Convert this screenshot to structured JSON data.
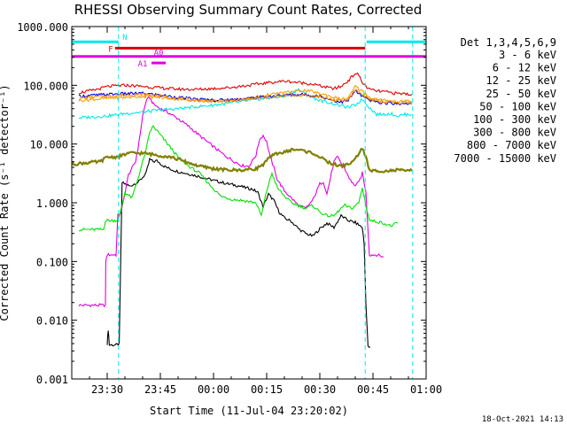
{
  "chart_data": {
    "type": "line",
    "title": "RHESSI Observing Summary Count Rates, Corrected",
    "ylabel": "Corrected Count Rate (s⁻¹ detector⁻¹)",
    "xlabel": "Start Time (11-Jul-04 23:20:02)",
    "date_stamp": "18-Oct-2021 14:13",
    "yscale": "log",
    "ylim": [
      0.001,
      1000
    ],
    "xlim_minutes": [
      0,
      100
    ],
    "y_ticks": [
      {
        "value": 1000,
        "label": "1000.000"
      },
      {
        "value": 100,
        "label": "100.000"
      },
      {
        "value": 10,
        "label": "10.000"
      },
      {
        "value": 1,
        "label": "1.000"
      },
      {
        "value": 0.1,
        "label": "0.100"
      },
      {
        "value": 0.01,
        "label": "0.010"
      },
      {
        "value": 0.001,
        "label": "0.001"
      }
    ],
    "x_ticks": [
      {
        "minute": 10,
        "label": "23:30"
      },
      {
        "minute": 25,
        "label": "23:45"
      },
      {
        "minute": 40,
        "label": "00:00"
      },
      {
        "minute": 55,
        "label": "00:15"
      },
      {
        "minute": 70,
        "label": "00:30"
      },
      {
        "minute": 85,
        "label": "00:45"
      },
      {
        "minute": 100,
        "label": "01:00"
      }
    ],
    "legend": {
      "placement": "right",
      "header": "Det 1,3,4,5,6,9",
      "entries": [
        {
          "label": "3 - 6 keV",
          "color": "#000000"
        },
        {
          "label": "6 - 12 keV",
          "color": "#e000e0"
        },
        {
          "label": "12 - 25 keV",
          "color": "#00e000"
        },
        {
          "label": "25 - 50 keV",
          "color": "#00e8e8"
        },
        {
          "label": "50 - 100 keV",
          "color": "#f0a000"
        },
        {
          "label": "100 - 300 keV",
          "color": "#e00000"
        },
        {
          "label": "300 - 800 keV",
          "color": "#0000e0"
        },
        {
          "label": "800 - 7000 keV",
          "color": "#ff8c00"
        },
        {
          "label": "7000 - 15000 keV",
          "color": "#808000"
        }
      ]
    },
    "flags": [
      {
        "label": "N",
        "color": "#00e8e8",
        "y": 550,
        "segments": [
          [
            0,
            13.2
          ],
          [
            83.2,
            100
          ]
        ]
      },
      {
        "label": "F",
        "color": "#e00000",
        "y": 430,
        "segments": [
          [
            12.2,
            82.8
          ]
        ]
      },
      {
        "label": "A0",
        "color": "#e000e0",
        "y": 310,
        "segments": [
          [
            0,
            100
          ]
        ]
      },
      {
        "label": "A1",
        "color": "#e000e0",
        "y": 240,
        "segments": [
          [
            22.5,
            26.5
          ]
        ]
      }
    ],
    "vlines": [
      {
        "minute": 13.2,
        "color": "#00e8e8"
      },
      {
        "minute": 82.8,
        "color": "#00e8e8"
      },
      {
        "minute": 96.2,
        "color": "#00e8e8"
      }
    ],
    "series": [
      {
        "name": "3 - 6 keV",
        "color": "#000000",
        "x": [
          10,
          10.3,
          10.6,
          12.9,
          13.4,
          14.2,
          16.5,
          17,
          19,
          21,
          22,
          23,
          24,
          26,
          28,
          30,
          33,
          36,
          40,
          44,
          47,
          49,
          51,
          52.5,
          54,
          55.5,
          57,
          58.5,
          60,
          62,
          64,
          66,
          68,
          70,
          72,
          74,
          76,
          78,
          80,
          82,
          82.5,
          83,
          83.6,
          84.2
        ],
        "y": [
          0.004,
          0.007,
          0.0038,
          0.0038,
          0.004,
          2.2,
          1.9,
          2.0,
          2.3,
          3.2,
          5.5,
          5.0,
          5.2,
          4.2,
          3.7,
          3.4,
          3.1,
          2.8,
          2.4,
          2.1,
          1.95,
          1.8,
          1.7,
          1.5,
          0.85,
          1.4,
          1.1,
          0.7,
          0.55,
          0.48,
          0.36,
          0.3,
          0.27,
          0.36,
          0.45,
          0.38,
          0.6,
          0.5,
          0.46,
          0.38,
          0.2,
          0.02,
          0.0035,
          0.0035
        ]
      },
      {
        "name": "6 - 12 keV",
        "color": "#e000e0",
        "x": [
          2,
          9.5,
          9.6,
          10,
          12.5,
          13,
          14,
          16,
          18,
          19,
          20,
          21,
          22,
          23,
          25,
          27,
          30,
          33,
          36,
          40,
          43,
          46,
          48,
          50,
          52,
          53,
          54,
          55,
          56,
          57,
          58,
          60,
          62,
          64,
          66,
          68,
          70,
          71,
          72,
          74,
          75,
          77,
          79,
          80,
          81,
          82,
          83,
          84,
          86,
          88
        ],
        "y": [
          0.018,
          0.018,
          0.1,
          0.13,
          0.13,
          0.6,
          0.7,
          3.0,
          5.0,
          11.0,
          30.0,
          55.0,
          62.0,
          48.0,
          40.0,
          35.0,
          27.0,
          20.0,
          14.0,
          9.0,
          6.5,
          5.0,
          4.3,
          4.2,
          6.5,
          12.0,
          14.0,
          11.0,
          6.0,
          4.0,
          2.5,
          1.6,
          1.2,
          0.9,
          0.8,
          1.1,
          2.1,
          2.3,
          1.4,
          5.0,
          6.0,
          3.8,
          2.2,
          2.0,
          2.2,
          3.2,
          1.5,
          0.13,
          0.13,
          0.12
        ]
      },
      {
        "name": "12 - 25 keV",
        "color": "#00e000",
        "x": [
          2,
          9,
          9.5,
          13,
          13.5,
          15,
          17,
          19,
          21,
          22,
          23,
          24,
          26,
          28,
          30,
          33,
          36,
          39,
          42,
          45,
          48,
          50,
          52,
          53.5,
          55,
          56.5,
          58,
          60,
          62,
          64,
          66,
          68,
          70,
          72,
          74,
          76,
          77,
          79,
          81,
          82,
          83,
          84,
          86,
          88,
          90,
          92
        ],
        "y": [
          0.35,
          0.35,
          0.5,
          0.5,
          0.6,
          1.5,
          1.2,
          3.0,
          8.0,
          16.0,
          20.0,
          17.0,
          12.0,
          8.5,
          6.0,
          4.2,
          3.2,
          2.0,
          1.3,
          1.15,
          1.1,
          1.05,
          1.0,
          0.6,
          1.6,
          3.2,
          1.8,
          1.3,
          1.0,
          0.9,
          0.8,
          0.9,
          0.7,
          0.6,
          0.6,
          0.8,
          0.9,
          0.8,
          1.0,
          1.8,
          0.9,
          0.5,
          0.48,
          0.45,
          0.4,
          0.45
        ]
      },
      {
        "name": "25 - 50 keV",
        "color": "#00e8e8",
        "x": [
          2,
          10,
          15,
          20,
          25,
          30,
          35,
          40,
          45,
          50,
          55,
          60,
          62,
          64,
          66,
          68,
          70,
          72,
          74,
          76,
          78,
          80,
          82,
          84,
          86,
          88,
          90,
          92,
          94,
          96
        ],
        "y": [
          28.0,
          30.0,
          33.0,
          35.0,
          38.0,
          40.0,
          43.0,
          46.0,
          50.0,
          55.0,
          60.0,
          65.0,
          72.0,
          85.0,
          70.0,
          62.0,
          55.0,
          52.0,
          48.0,
          45.0,
          42.0,
          46.0,
          58.0,
          42.0,
          32.0,
          32.0,
          33.0,
          30.0,
          32.0,
          32.0
        ]
      },
      {
        "name": "50 - 100 keV",
        "color": "#f0a000",
        "x": [
          2,
          10,
          15,
          20,
          25,
          30,
          35,
          40,
          45,
          50,
          55,
          60,
          65,
          68,
          70,
          72,
          74,
          76,
          78,
          80,
          82,
          84,
          86,
          88,
          90,
          92,
          94,
          96
        ],
        "y": [
          55.0,
          60.0,
          62.0,
          65.0,
          62.0,
          58.0,
          55.0,
          53.0,
          55.0,
          60.0,
          68.0,
          75.0,
          82.0,
          78.0,
          72.0,
          68.0,
          62.0,
          58.0,
          60.0,
          95.0,
          80.0,
          62.0,
          58.0,
          55.0,
          55.0,
          52.0,
          55.0,
          52.0
        ]
      },
      {
        "name": "100 - 300 keV",
        "color": "#e00000",
        "x": [
          2,
          6,
          10,
          15,
          20,
          25,
          30,
          35,
          40,
          45,
          50,
          55,
          60,
          65,
          68,
          70,
          72,
          74,
          76,
          78,
          80,
          81,
          82,
          84,
          86,
          88,
          90,
          92,
          94,
          96
        ],
        "y": [
          75.0,
          82.0,
          95.0,
          100.0,
          96.0,
          90.0,
          86.0,
          85.0,
          88.0,
          92.0,
          100.0,
          110.0,
          118.0,
          110.0,
          105.0,
          98.0,
          92.0,
          88.0,
          95.0,
          120.0,
          160.0,
          150.0,
          110.0,
          85.0,
          80.0,
          78.0,
          75.0,
          72.0,
          72.0,
          70.0
        ]
      },
      {
        "name": "300 - 800 keV",
        "color": "#0000e0",
        "x": [
          2,
          10,
          15,
          20,
          25,
          30,
          35,
          40,
          45,
          50,
          55,
          60,
          65,
          70,
          74,
          76,
          78,
          80,
          82,
          84,
          86,
          88,
          90,
          92,
          94,
          96
        ],
        "y": [
          65.0,
          70.0,
          72.0,
          73.0,
          68.0,
          62.0,
          58.0,
          56.0,
          57.0,
          60.0,
          64.0,
          68.0,
          70.0,
          65.0,
          55.0,
          52.0,
          55.0,
          80.0,
          65.0,
          55.0,
          52.0,
          50.0,
          50.0,
          48.0,
          50.0,
          48.0
        ]
      },
      {
        "name": "800 - 7000 keV",
        "color": "#ff8c00",
        "x": [
          2,
          10,
          15,
          20,
          25,
          30,
          35,
          40,
          45,
          50,
          55,
          60,
          65,
          70,
          74,
          76,
          78,
          80,
          82,
          84,
          86,
          88,
          90,
          92,
          94,
          96
        ],
        "y": [
          60.0,
          66.0,
          68.0,
          70.0,
          66.0,
          60.0,
          56.0,
          54.0,
          55.0,
          58.0,
          62.0,
          66.0,
          68.0,
          64.0,
          56.0,
          54.0,
          58.0,
          85.0,
          70.0,
          58.0,
          55.0,
          52.0,
          52.0,
          50.0,
          52.0,
          50.0
        ]
      },
      {
        "name": "7000 - 15000 keV",
        "color": "#808000",
        "x": [
          0,
          4,
          8,
          10,
          13,
          16,
          20,
          24,
          28,
          32,
          36,
          40,
          44,
          48,
          52,
          54,
          56,
          58,
          60,
          62,
          64,
          66,
          68,
          70,
          72,
          74,
          76,
          78,
          80,
          81,
          82,
          83,
          84,
          86,
          88,
          90,
          92,
          94,
          96
        ],
        "y": [
          4.5,
          4.8,
          5.0,
          6.0,
          6.0,
          7.0,
          7.0,
          6.5,
          6.0,
          5.0,
          4.2,
          3.8,
          3.6,
          3.6,
          3.8,
          4.5,
          6.0,
          7.0,
          7.2,
          8.0,
          8.0,
          7.5,
          7.0,
          6.0,
          5.0,
          4.5,
          4.2,
          4.5,
          5.5,
          7.0,
          8.5,
          6.0,
          3.5,
          3.5,
          3.5,
          3.5,
          3.6,
          3.5,
          3.5
        ]
      }
    ]
  }
}
